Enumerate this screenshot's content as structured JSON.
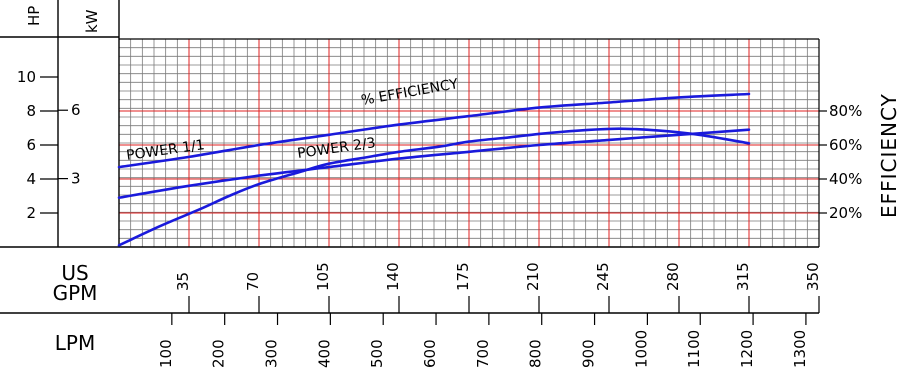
{
  "chart_data": {
    "type": "line",
    "axes": {
      "hp": {
        "title": "HP",
        "ticks": [
          "10",
          "8",
          "6",
          "4",
          "2"
        ]
      },
      "kw": {
        "title": "kW",
        "ticks": [
          "6",
          "3"
        ]
      },
      "efficiency": {
        "title": "EFFICIENCY",
        "ticks": [
          "80%",
          "60%",
          "40%",
          "20%"
        ]
      },
      "us_gpm": {
        "title_line1": "US",
        "title_line2": "GPM",
        "ticks": [
          "35",
          "70",
          "105",
          "140",
          "175",
          "210",
          "245",
          "280",
          "315",
          "350"
        ],
        "range": [
          0,
          350
        ]
      },
      "lpm": {
        "title": "LPM",
        "ticks": [
          "100",
          "200",
          "300",
          "400",
          "500",
          "600",
          "700",
          "800",
          "900",
          "1000",
          "1100",
          "1200",
          "1300"
        ]
      }
    },
    "grid": true,
    "series": [
      {
        "name": "POWER 1/1",
        "axis": "hp",
        "x": [
          0,
          35,
          70,
          105,
          140,
          175,
          210,
          245,
          280,
          315
        ],
        "y": [
          4.7,
          5.3,
          6.0,
          6.6,
          7.2,
          7.7,
          8.2,
          8.5,
          8.8,
          9.0
        ]
      },
      {
        "name": "POWER 2/3",
        "axis": "hp",
        "x": [
          0,
          35,
          70,
          105,
          140,
          175,
          210,
          245,
          280,
          315
        ],
        "y": [
          2.9,
          3.6,
          4.2,
          4.7,
          5.2,
          5.6,
          6.0,
          6.3,
          6.6,
          6.9
        ]
      },
      {
        "name": "% EFFICIENCY",
        "axis": "efficiency",
        "x": [
          0,
          20,
          40,
          55,
          70,
          90,
          105,
          125,
          140,
          160,
          175,
          195,
          210,
          230,
          245,
          255,
          270,
          290,
          315
        ],
        "y": [
          1,
          12,
          22,
          30,
          37,
          44,
          49,
          53,
          56,
          59,
          62,
          64.5,
          66.5,
          68.5,
          69.5,
          69.5,
          68.5,
          66,
          61
        ]
      }
    ]
  }
}
